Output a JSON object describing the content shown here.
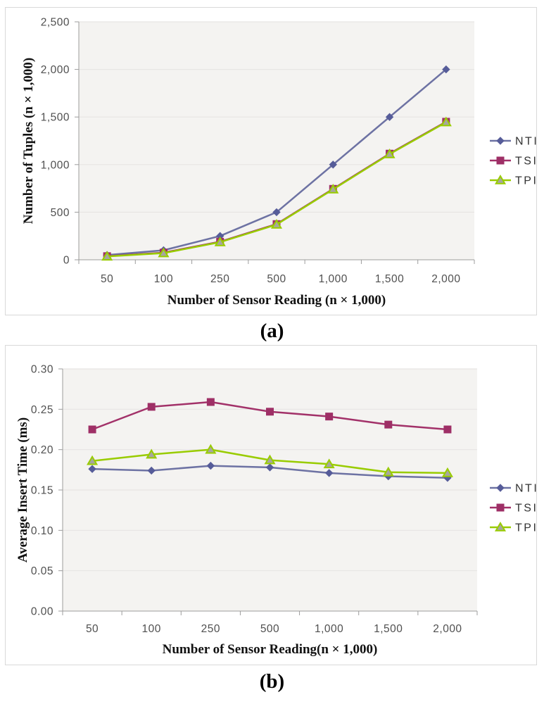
{
  "figure": {
    "captions": {
      "a": "(a)",
      "b": "(b)"
    }
  },
  "colors": {
    "plot_background": "#f4f3f1",
    "gridline": "#e7e5e3",
    "axis_line": "#9c9c9c",
    "tick_label": "#4f4f4f",
    "box_border": "#d9d9d9",
    "nti_line": "#6d72a3",
    "nti_marker": "#565c99",
    "tsi_line": "#a23169",
    "tsi_marker": "#9e2f66",
    "tpi_line": "#99cc00",
    "tpi_marker_fill": "#a7a79f"
  },
  "chart_data": [
    {
      "id": "a",
      "type": "line",
      "title": "",
      "categories": [
        "50",
        "100",
        "250",
        "500",
        "1,000",
        "1,500",
        "2,000"
      ],
      "xlabel": "Number of Sensor Reading (n × 1,000)",
      "ylabel": "Number of Tuples (n × 1,000)",
      "ylim": [
        0,
        2500
      ],
      "ytick_step": 500,
      "yticklabels": [
        "0",
        "500",
        "1,000",
        "1,500",
        "2,000",
        "2,500"
      ],
      "grid": true,
      "legend_position": "right",
      "caption": "(a)",
      "series": [
        {
          "name": "NTI",
          "marker": "diamond",
          "values": [
            50,
            100,
            250,
            500,
            1000,
            1500,
            2000
          ]
        },
        {
          "name": "TSI",
          "marker": "square",
          "values": [
            38,
            75,
            190,
            375,
            745,
            1115,
            1450
          ]
        },
        {
          "name": "TPI",
          "marker": "triangle",
          "values": [
            35,
            70,
            185,
            370,
            740,
            1110,
            1445
          ]
        }
      ]
    },
    {
      "id": "b",
      "type": "line",
      "title": "",
      "categories": [
        "50",
        "100",
        "250",
        "500",
        "1,000",
        "1,500",
        "2,000"
      ],
      "xlabel": "Number of Sensor Reading(n × 1,000)",
      "ylabel": "Average Insert Time (ms)",
      "ylim": [
        0,
        0.3
      ],
      "ytick_step": 0.05,
      "yticklabels": [
        "0.00",
        "0.05",
        "0.10",
        "0.15",
        "0.20",
        "0.25",
        "0.30"
      ],
      "grid": true,
      "legend_position": "right",
      "caption": "(b)",
      "series": [
        {
          "name": "NTI",
          "marker": "diamond",
          "values": [
            0.176,
            0.174,
            0.18,
            0.178,
            0.171,
            0.167,
            0.165
          ]
        },
        {
          "name": "TSI",
          "marker": "square",
          "values": [
            0.225,
            0.253,
            0.259,
            0.247,
            0.241,
            0.231,
            0.225
          ]
        },
        {
          "name": "TPI",
          "marker": "triangle",
          "values": [
            0.186,
            0.194,
            0.2,
            0.187,
            0.182,
            0.172,
            0.171
          ]
        }
      ]
    }
  ]
}
